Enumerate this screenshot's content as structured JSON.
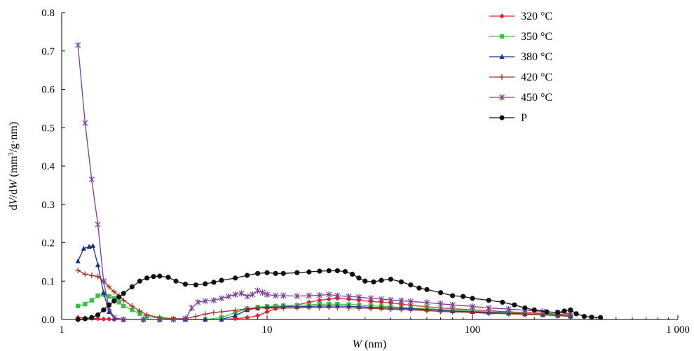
{
  "chart_data": {
    "type": "line",
    "x_scale": "log",
    "xlim": [
      1,
      1000
    ],
    "ylim": [
      0,
      0.8
    ],
    "xlabel": {
      "italic": "W",
      "rest": " (nm)"
    },
    "ylabel": {
      "d1": "d",
      "v": "V",
      "slash": "/d",
      "w": "W",
      "unit_open": " (mm",
      "sup": "3",
      "unit_close": "/g·nm)"
    },
    "x_ticks": [
      1,
      10,
      100,
      1000
    ],
    "x_tick_labels": [
      "1",
      "10",
      "100",
      "1 000"
    ],
    "y_ticks": [
      0,
      0.1,
      0.2,
      0.3,
      0.4,
      0.5,
      0.6,
      0.7,
      0.8
    ],
    "y_tick_labels": [
      "0.0",
      "0.1",
      "0.2",
      "0.3",
      "0.4",
      "0.5",
      "0.6",
      "0.7",
      "0.8"
    ],
    "grid": false,
    "legend_position": "top-right",
    "series": [
      {
        "name": "320 °C",
        "color": "#e8202a",
        "marker": "diamond",
        "points": [
          [
            1.2,
            0.005
          ],
          [
            1.3,
            0.004
          ],
          [
            1.4,
            0.003
          ],
          [
            1.5,
            0.002
          ],
          [
            1.6,
            0.001
          ],
          [
            1.7,
            0.001
          ],
          [
            1.8,
            0.0
          ],
          [
            2,
            0.0
          ],
          [
            2.5,
            0.0
          ],
          [
            3,
            0.0
          ],
          [
            3.5,
            0.0
          ],
          [
            4,
            0.0
          ],
          [
            5,
            0.0
          ],
          [
            6,
            0.0
          ],
          [
            7,
            0.002
          ],
          [
            8,
            0.005
          ],
          [
            9,
            0.01
          ],
          [
            10,
            0.02
          ],
          [
            11,
            0.028
          ],
          [
            12,
            0.032
          ],
          [
            14,
            0.038
          ],
          [
            16,
            0.045
          ],
          [
            18,
            0.05
          ],
          [
            20,
            0.053
          ],
          [
            22,
            0.055
          ],
          [
            25,
            0.053
          ],
          [
            28,
            0.05
          ],
          [
            32,
            0.047
          ],
          [
            36,
            0.045
          ],
          [
            40,
            0.043
          ],
          [
            45,
            0.04
          ],
          [
            50,
            0.037
          ],
          [
            60,
            0.033
          ],
          [
            70,
            0.03
          ],
          [
            80,
            0.028
          ],
          [
            100,
            0.025
          ],
          [
            120,
            0.023
          ],
          [
            150,
            0.02
          ],
          [
            180,
            0.018
          ],
          [
            220,
            0.016
          ],
          [
            260,
            0.014
          ],
          [
            300,
            0.012
          ]
        ]
      },
      {
        "name": "350 °C",
        "color": "#3fbf4a",
        "marker": "square",
        "points": [
          [
            1.2,
            0.035
          ],
          [
            1.3,
            0.04
          ],
          [
            1.4,
            0.05
          ],
          [
            1.5,
            0.062
          ],
          [
            1.6,
            0.065
          ],
          [
            1.7,
            0.06
          ],
          [
            1.8,
            0.055
          ],
          [
            1.9,
            0.045
          ],
          [
            2,
            0.035
          ],
          [
            2.2,
            0.025
          ],
          [
            2.4,
            0.015
          ],
          [
            2.6,
            0.008
          ],
          [
            3,
            0.003
          ],
          [
            3.5,
            0.001
          ],
          [
            4,
            0.0
          ],
          [
            5,
            0.0
          ],
          [
            6,
            0.005
          ],
          [
            7,
            0.018
          ],
          [
            8,
            0.028
          ],
          [
            9,
            0.032
          ],
          [
            10,
            0.034
          ],
          [
            11,
            0.035
          ],
          [
            12,
            0.036
          ],
          [
            14,
            0.037
          ],
          [
            16,
            0.038
          ],
          [
            18,
            0.04
          ],
          [
            20,
            0.04
          ],
          [
            22,
            0.04
          ],
          [
            25,
            0.039
          ],
          [
            28,
            0.038
          ],
          [
            32,
            0.036
          ],
          [
            36,
            0.034
          ],
          [
            40,
            0.033
          ],
          [
            45,
            0.031
          ],
          [
            50,
            0.03
          ],
          [
            60,
            0.028
          ],
          [
            70,
            0.026
          ],
          [
            80,
            0.024
          ],
          [
            100,
            0.022
          ],
          [
            120,
            0.02
          ],
          [
            150,
            0.018
          ],
          [
            180,
            0.016
          ],
          [
            220,
            0.014
          ],
          [
            260,
            0.012
          ],
          [
            300,
            0.01
          ]
        ]
      },
      {
        "name": "380 °C",
        "color": "#1f2f8f",
        "marker": "triangle",
        "points": [
          [
            1.2,
            0.152
          ],
          [
            1.28,
            0.185
          ],
          [
            1.36,
            0.19
          ],
          [
            1.42,
            0.192
          ],
          [
            1.5,
            0.142
          ],
          [
            1.6,
            0.07
          ],
          [
            1.7,
            0.02
          ],
          [
            1.8,
            0.003
          ],
          [
            2,
            0.0
          ],
          [
            2.5,
            0.0
          ],
          [
            3,
            0.0
          ],
          [
            4,
            0.0
          ],
          [
            5,
            0.0
          ],
          [
            6,
            0.0
          ],
          [
            7,
            0.01
          ],
          [
            8,
            0.025
          ],
          [
            9,
            0.03
          ],
          [
            10,
            0.032
          ],
          [
            12,
            0.033
          ],
          [
            14,
            0.033
          ],
          [
            16,
            0.034
          ],
          [
            18,
            0.035
          ],
          [
            20,
            0.035
          ],
          [
            22,
            0.035
          ],
          [
            25,
            0.034
          ],
          [
            28,
            0.033
          ],
          [
            32,
            0.032
          ],
          [
            36,
            0.031
          ],
          [
            40,
            0.03
          ],
          [
            45,
            0.029
          ],
          [
            50,
            0.028
          ],
          [
            60,
            0.026
          ],
          [
            70,
            0.024
          ],
          [
            80,
            0.022
          ],
          [
            100,
            0.02
          ],
          [
            120,
            0.018
          ],
          [
            150,
            0.016
          ],
          [
            180,
            0.014
          ],
          [
            220,
            0.012
          ],
          [
            260,
            0.01
          ],
          [
            300,
            0.008
          ]
        ]
      },
      {
        "name": "420 °C",
        "color": "#a03020",
        "marker": "plus",
        "points": [
          [
            1.2,
            0.128
          ],
          [
            1.3,
            0.118
          ],
          [
            1.4,
            0.115
          ],
          [
            1.5,
            0.112
          ],
          [
            1.6,
            0.1
          ],
          [
            1.7,
            0.085
          ],
          [
            1.8,
            0.072
          ],
          [
            1.9,
            0.062
          ],
          [
            2,
            0.05
          ],
          [
            2.2,
            0.035
          ],
          [
            2.4,
            0.022
          ],
          [
            2.6,
            0.012
          ],
          [
            3,
            0.005
          ],
          [
            3.5,
            0.002
          ],
          [
            4,
            0.002
          ],
          [
            4.5,
            0.008
          ],
          [
            5,
            0.014
          ],
          [
            5.5,
            0.018
          ],
          [
            6,
            0.02
          ],
          [
            7,
            0.024
          ],
          [
            8,
            0.028
          ],
          [
            9,
            0.03
          ],
          [
            10,
            0.03
          ],
          [
            12,
            0.03
          ],
          [
            14,
            0.03
          ],
          [
            16,
            0.031
          ],
          [
            18,
            0.031
          ],
          [
            20,
            0.032
          ],
          [
            22,
            0.031
          ],
          [
            25,
            0.03
          ],
          [
            28,
            0.03
          ],
          [
            32,
            0.029
          ],
          [
            36,
            0.028
          ],
          [
            40,
            0.027
          ],
          [
            45,
            0.026
          ],
          [
            50,
            0.025
          ],
          [
            60,
            0.023
          ],
          [
            70,
            0.021
          ],
          [
            80,
            0.02
          ],
          [
            100,
            0.018
          ],
          [
            120,
            0.016
          ],
          [
            150,
            0.015
          ],
          [
            180,
            0.013
          ],
          [
            220,
            0.012
          ],
          [
            260,
            0.01
          ],
          [
            300,
            0.009
          ]
        ]
      },
      {
        "name": "450 °C",
        "color": "#7a3a9a",
        "marker": "star",
        "points": [
          [
            1.2,
            0.715
          ],
          [
            1.3,
            0.512
          ],
          [
            1.4,
            0.365
          ],
          [
            1.5,
            0.248
          ],
          [
            1.6,
            0.1
          ],
          [
            1.7,
            0.03
          ],
          [
            1.8,
            0.005
          ],
          [
            2,
            0.0
          ],
          [
            2.5,
            0.0
          ],
          [
            3,
            0.0
          ],
          [
            3.5,
            0.0
          ],
          [
            4,
            0.002
          ],
          [
            4.3,
            0.03
          ],
          [
            4.6,
            0.045
          ],
          [
            5,
            0.048
          ],
          [
            5.5,
            0.05
          ],
          [
            6,
            0.055
          ],
          [
            6.5,
            0.06
          ],
          [
            7,
            0.065
          ],
          [
            7.5,
            0.068
          ],
          [
            8,
            0.06
          ],
          [
            8.5,
            0.065
          ],
          [
            9,
            0.075
          ],
          [
            9.5,
            0.07
          ],
          [
            10,
            0.065
          ],
          [
            11,
            0.062
          ],
          [
            12,
            0.062
          ],
          [
            14,
            0.061
          ],
          [
            16,
            0.062
          ],
          [
            18,
            0.063
          ],
          [
            20,
            0.065
          ],
          [
            22,
            0.062
          ],
          [
            25,
            0.06
          ],
          [
            28,
            0.058
          ],
          [
            32,
            0.055
          ],
          [
            36,
            0.053
          ],
          [
            40,
            0.051
          ],
          [
            45,
            0.049
          ],
          [
            50,
            0.047
          ],
          [
            60,
            0.044
          ],
          [
            70,
            0.041
          ],
          [
            80,
            0.038
          ],
          [
            100,
            0.034
          ],
          [
            120,
            0.03
          ],
          [
            150,
            0.027
          ],
          [
            180,
            0.024
          ],
          [
            220,
            0.021
          ],
          [
            260,
            0.018
          ],
          [
            300,
            0.015
          ]
        ]
      },
      {
        "name": "P",
        "color": "#111111",
        "marker": "circle",
        "points": [
          [
            1.2,
            0.0
          ],
          [
            1.3,
            0.002
          ],
          [
            1.4,
            0.005
          ],
          [
            1.5,
            0.012
          ],
          [
            1.6,
            0.025
          ],
          [
            1.7,
            0.038
          ],
          [
            1.8,
            0.048
          ],
          [
            1.9,
            0.058
          ],
          [
            2,
            0.068
          ],
          [
            2.2,
            0.085
          ],
          [
            2.4,
            0.1
          ],
          [
            2.6,
            0.108
          ],
          [
            2.8,
            0.112
          ],
          [
            3,
            0.113
          ],
          [
            3.3,
            0.11
          ],
          [
            3.6,
            0.1
          ],
          [
            4,
            0.092
          ],
          [
            4.5,
            0.09
          ],
          [
            5,
            0.093
          ],
          [
            5.5,
            0.097
          ],
          [
            6,
            0.102
          ],
          [
            7,
            0.108
          ],
          [
            8,
            0.115
          ],
          [
            9,
            0.12
          ],
          [
            10,
            0.122
          ],
          [
            11,
            0.12
          ],
          [
            12,
            0.12
          ],
          [
            14,
            0.122
          ],
          [
            16,
            0.124
          ],
          [
            18,
            0.126
          ],
          [
            20,
            0.127
          ],
          [
            22,
            0.127
          ],
          [
            24,
            0.125
          ],
          [
            26,
            0.118
          ],
          [
            28,
            0.108
          ],
          [
            30,
            0.1
          ],
          [
            33,
            0.098
          ],
          [
            36,
            0.102
          ],
          [
            40,
            0.105
          ],
          [
            45,
            0.098
          ],
          [
            50,
            0.09
          ],
          [
            55,
            0.082
          ],
          [
            60,
            0.078
          ],
          [
            70,
            0.07
          ],
          [
            80,
            0.062
          ],
          [
            90,
            0.06
          ],
          [
            100,
            0.055
          ],
          [
            120,
            0.05
          ],
          [
            140,
            0.045
          ],
          [
            160,
            0.038
          ],
          [
            180,
            0.03
          ],
          [
            200,
            0.025
          ],
          [
            230,
            0.02
          ],
          [
            260,
            0.018
          ],
          [
            280,
            0.022
          ],
          [
            300,
            0.025
          ],
          [
            320,
            0.015
          ],
          [
            350,
            0.008
          ],
          [
            380,
            0.006
          ],
          [
            420,
            0.005
          ]
        ]
      }
    ]
  }
}
